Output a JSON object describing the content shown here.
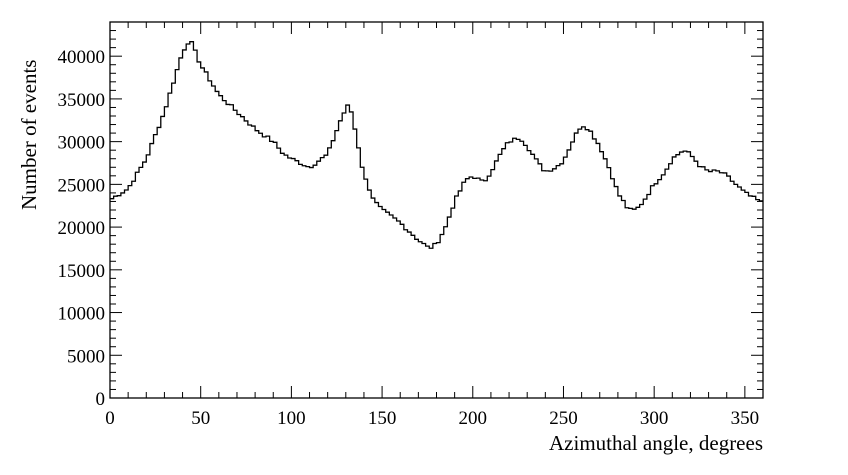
{
  "chart_data": {
    "type": "histogram",
    "title": "",
    "xlabel": "Azimuthal angle, degrees",
    "ylabel": "Number of events",
    "xlim": [
      0,
      360
    ],
    "ylim": [
      0,
      44000
    ],
    "xticks": [
      0,
      50,
      100,
      150,
      200,
      250,
      300,
      350
    ],
    "xtick_labels": [
      "0",
      "50",
      "100",
      "150",
      "200",
      "250",
      "300",
      "350"
    ],
    "yticks": [
      0,
      5000,
      10000,
      15000,
      20000,
      25000,
      30000,
      35000,
      40000
    ],
    "ytick_labels": [
      "0",
      "5000",
      "10000",
      "15000",
      "20000",
      "25000",
      "30000",
      "35000",
      "40000"
    ],
    "x_minor_step": 10,
    "y_minor_step": 1000,
    "grid": false,
    "bin_width": 2,
    "series": [
      {
        "x": [
          0,
          10,
          20,
          30,
          40,
          44,
          50,
          60,
          70,
          80,
          90,
          96,
          100,
          110,
          120,
          128,
          132,
          136,
          140,
          146,
          150,
          160,
          170,
          176,
          180,
          185,
          190,
          196,
          200,
          206,
          210,
          216,
          220,
          226,
          230,
          236,
          240,
          246,
          250,
          256,
          260,
          264,
          270,
          276,
          280,
          286,
          290,
          294,
          300,
          306,
          310,
          316,
          320,
          326,
          330,
          336,
          340,
          346,
          350,
          354,
          360
        ],
        "values": [
          23200,
          24500,
          28000,
          33500,
          40500,
          42000,
          39000,
          35500,
          33500,
          31500,
          30000,
          28500,
          28000,
          27000,
          28500,
          33000,
          34500,
          30500,
          26000,
          23000,
          22000,
          20500,
          18500,
          17500,
          18000,
          20000,
          23000,
          25500,
          26000,
          25200,
          26500,
          28800,
          30000,
          30500,
          29500,
          27500,
          26500,
          27000,
          27800,
          30500,
          32000,
          31500,
          29500,
          26500,
          24000,
          22000,
          22000,
          23000,
          25000,
          26500,
          28000,
          29000,
          28500,
          27000,
          26500,
          26500,
          26000,
          24800,
          24000,
          23500,
          22800
        ]
      }
    ]
  }
}
